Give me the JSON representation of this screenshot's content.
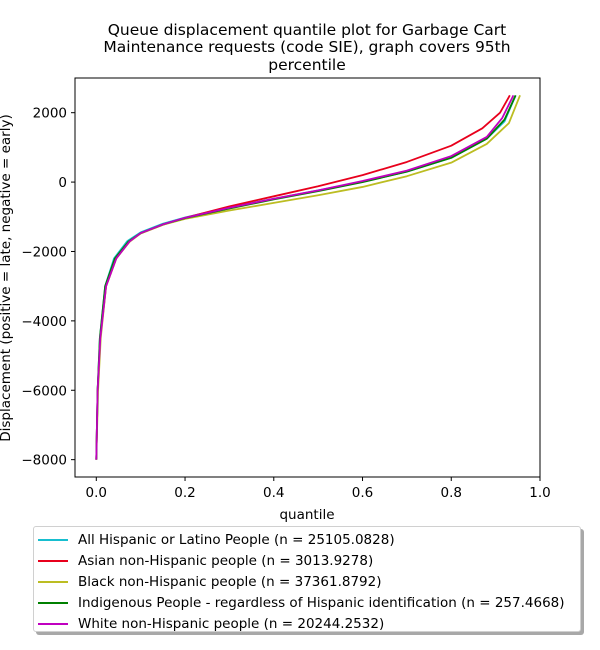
{
  "chart_data": {
    "type": "line",
    "title_lines": [
      "Queue displacement quantile plot for Garbage Cart",
      "Maintenance  requests (code SIE), graph covers 95th",
      "percentile"
    ],
    "xlabel": "quantile",
    "ylabel": "Displacement (positive = late, negative = early)",
    "xlim": [
      -0.048,
      1.0
    ],
    "ylim": [
      -8500,
      3000
    ],
    "x_ticks": [
      0.0,
      0.2,
      0.4,
      0.6,
      0.8,
      1.0
    ],
    "x_tick_labels": [
      "0.0",
      "0.2",
      "0.4",
      "0.6",
      "0.8",
      "1.0"
    ],
    "y_ticks": [
      -8000,
      -6000,
      -4000,
      -2000,
      0,
      2000
    ],
    "y_tick_labels": [
      "−8000",
      "−6000",
      "−4000",
      "−2000",
      "0",
      "2000"
    ],
    "grid": false,
    "legend_position": "below",
    "series": [
      {
        "name": "All Hispanic or Latino People (n = 25105.0828)",
        "color": "#17becf",
        "points": [
          [
            0.0,
            -8000
          ],
          [
            0.003,
            -6000
          ],
          [
            0.008,
            -4500
          ],
          [
            0.02,
            -3000
          ],
          [
            0.04,
            -2200
          ],
          [
            0.07,
            -1700
          ],
          [
            0.1,
            -1450
          ],
          [
            0.15,
            -1200
          ],
          [
            0.2,
            -1020
          ],
          [
            0.3,
            -730
          ],
          [
            0.4,
            -480
          ],
          [
            0.5,
            -240
          ],
          [
            0.6,
            10
          ],
          [
            0.7,
            300
          ],
          [
            0.8,
            700
          ],
          [
            0.88,
            1250
          ],
          [
            0.92,
            1750
          ],
          [
            0.945,
            2500
          ]
        ]
      },
      {
        "name": "Asian non-Hispanic people (n = 3013.9278)",
        "color": "#e8001c",
        "points": [
          [
            0.0,
            -8000
          ],
          [
            0.003,
            -6000
          ],
          [
            0.009,
            -4500
          ],
          [
            0.022,
            -3000
          ],
          [
            0.045,
            -2200
          ],
          [
            0.075,
            -1700
          ],
          [
            0.1,
            -1480
          ],
          [
            0.15,
            -1230
          ],
          [
            0.2,
            -1030
          ],
          [
            0.3,
            -700
          ],
          [
            0.4,
            -410
          ],
          [
            0.5,
            -120
          ],
          [
            0.6,
            200
          ],
          [
            0.7,
            580
          ],
          [
            0.8,
            1050
          ],
          [
            0.87,
            1550
          ],
          [
            0.91,
            2000
          ],
          [
            0.932,
            2500
          ]
        ]
      },
      {
        "name": "Black non-Hispanic people (n = 37361.8792)",
        "color": "#bcbd22",
        "points": [
          [
            0.0,
            -8000
          ],
          [
            0.004,
            -6000
          ],
          [
            0.01,
            -4500
          ],
          [
            0.022,
            -3000
          ],
          [
            0.045,
            -2200
          ],
          [
            0.075,
            -1720
          ],
          [
            0.1,
            -1480
          ],
          [
            0.15,
            -1230
          ],
          [
            0.2,
            -1060
          ],
          [
            0.3,
            -820
          ],
          [
            0.4,
            -600
          ],
          [
            0.5,
            -380
          ],
          [
            0.6,
            -140
          ],
          [
            0.7,
            170
          ],
          [
            0.8,
            560
          ],
          [
            0.88,
            1100
          ],
          [
            0.93,
            1700
          ],
          [
            0.955,
            2500
          ]
        ]
      },
      {
        "name": "Indigenous People - regardless of Hispanic identification (n = 257.4668)",
        "color": "#008000",
        "points": [
          [
            0.0,
            -8000
          ],
          [
            0.003,
            -6000
          ],
          [
            0.008,
            -4500
          ],
          [
            0.02,
            -3000
          ],
          [
            0.042,
            -2200
          ],
          [
            0.072,
            -1720
          ],
          [
            0.1,
            -1470
          ],
          [
            0.15,
            -1220
          ],
          [
            0.2,
            -1040
          ],
          [
            0.3,
            -760
          ],
          [
            0.4,
            -500
          ],
          [
            0.5,
            -260
          ],
          [
            0.6,
            0
          ],
          [
            0.7,
            300
          ],
          [
            0.8,
            700
          ],
          [
            0.88,
            1250
          ],
          [
            0.92,
            1800
          ],
          [
            0.945,
            2500
          ]
        ]
      },
      {
        "name": "White non-Hispanic people (n = 20244.2532)",
        "color": "#c000c0",
        "points": [
          [
            0.0,
            -8000
          ],
          [
            0.003,
            -6000
          ],
          [
            0.009,
            -4500
          ],
          [
            0.022,
            -3000
          ],
          [
            0.045,
            -2200
          ],
          [
            0.075,
            -1710
          ],
          [
            0.1,
            -1470
          ],
          [
            0.15,
            -1220
          ],
          [
            0.2,
            -1030
          ],
          [
            0.3,
            -740
          ],
          [
            0.4,
            -480
          ],
          [
            0.5,
            -240
          ],
          [
            0.6,
            30
          ],
          [
            0.7,
            330
          ],
          [
            0.8,
            750
          ],
          [
            0.88,
            1300
          ],
          [
            0.915,
            1850
          ],
          [
            0.94,
            2500
          ]
        ]
      }
    ]
  }
}
